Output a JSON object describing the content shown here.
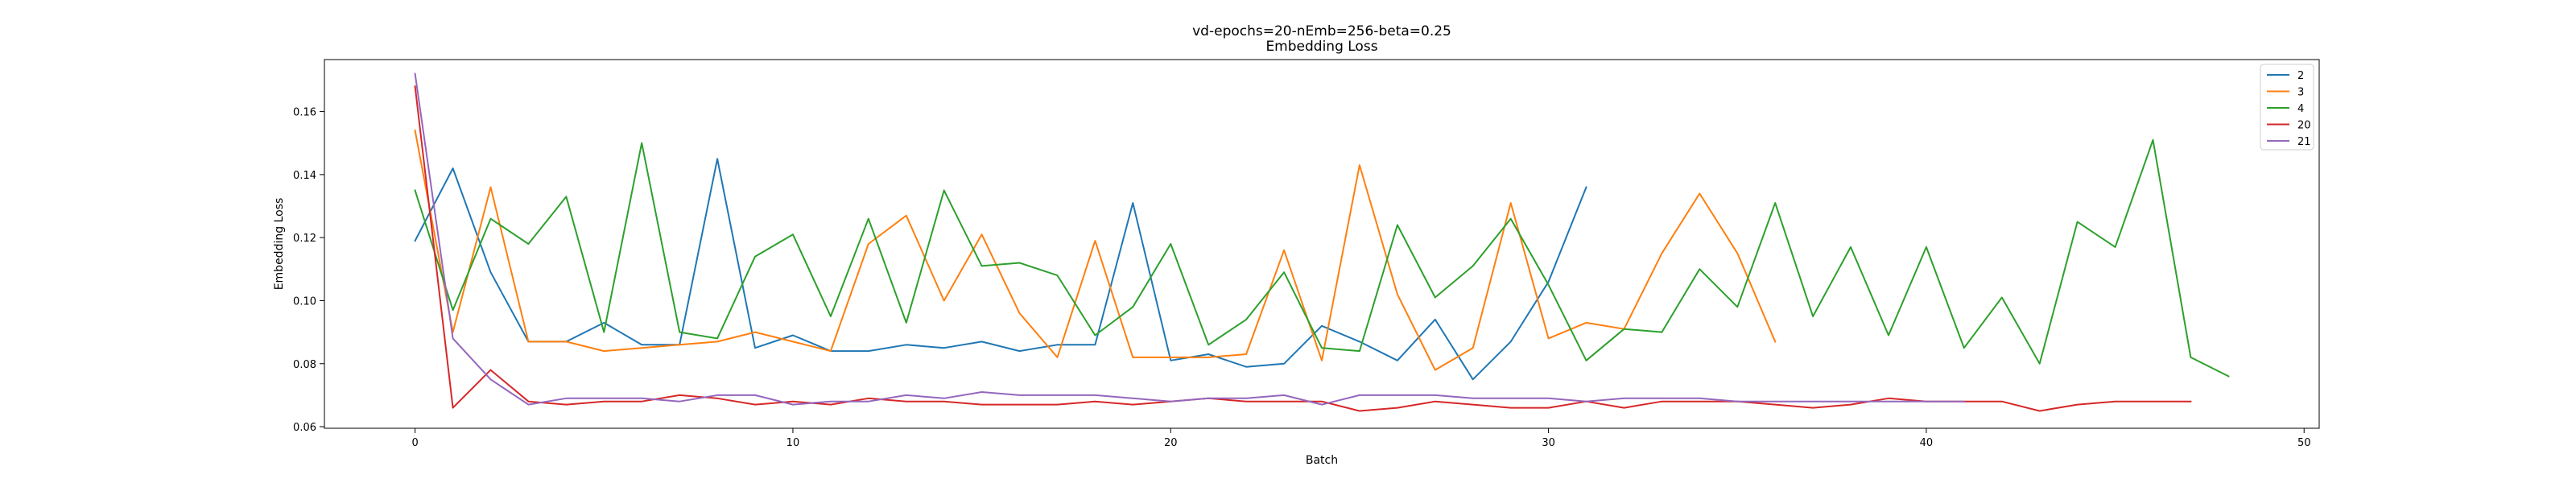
{
  "chart_data": {
    "type": "line",
    "title": "vd-epochs=20-nEmb=256-beta=0.25",
    "subtitle": "Embedding Loss",
    "xlabel": "Batch",
    "ylabel": "Embedding Loss",
    "xlim": [
      -2.4,
      50.4
    ],
    "ylim": [
      0.0595,
      0.1765
    ],
    "xticks": [
      0,
      10,
      20,
      30,
      40,
      50
    ],
    "xtick_labels": [
      "0",
      "10",
      "20",
      "30",
      "40",
      "50"
    ],
    "yticks": [
      0.06,
      0.08,
      0.1,
      0.12,
      0.14,
      0.16
    ],
    "ytick_labels": [
      "0.06",
      "0.08",
      "0.10",
      "0.12",
      "0.14",
      "0.16"
    ],
    "grid": false,
    "legend_position": "top-right",
    "series": [
      {
        "name": "2",
        "color": "#1f77b4",
        "values": [
          0.119,
          0.142,
          0.109,
          0.087,
          0.087,
          0.093,
          0.086,
          0.086,
          0.145,
          0.085,
          0.089,
          0.084,
          0.084,
          0.086,
          0.085,
          0.087,
          0.084,
          0.086,
          0.086,
          0.131,
          0.081,
          0.083,
          0.079,
          0.08,
          0.092,
          0.087,
          0.081,
          0.094,
          0.075,
          0.087,
          0.106,
          0.136
        ]
      },
      {
        "name": "3",
        "color": "#ff7f0e",
        "values": [
          0.154,
          0.09,
          0.136,
          0.087,
          0.087,
          0.084,
          0.085,
          0.086,
          0.087,
          0.09,
          0.087,
          0.084,
          0.118,
          0.127,
          0.1,
          0.121,
          0.096,
          0.082,
          0.119,
          0.082,
          0.082,
          0.082,
          0.083,
          0.116,
          0.081,
          0.143,
          0.102,
          0.078,
          0.085,
          0.131,
          0.088,
          0.093,
          0.091,
          0.115,
          0.134,
          0.115,
          0.087
        ]
      },
      {
        "name": "4",
        "color": "#2ca02c",
        "values": [
          0.135,
          0.097,
          0.126,
          0.118,
          0.133,
          0.09,
          0.15,
          0.09,
          0.088,
          0.114,
          0.121,
          0.095,
          0.126,
          0.093,
          0.135,
          0.111,
          0.112,
          0.108,
          0.089,
          0.098,
          0.118,
          0.086,
          0.094,
          0.109,
          0.085,
          0.084,
          0.124,
          0.101,
          0.111,
          0.126,
          0.105,
          0.081,
          0.091,
          0.09,
          0.11,
          0.098,
          0.131,
          0.095,
          0.117,
          0.089,
          0.117,
          0.085,
          0.101,
          0.08,
          0.125,
          0.117,
          0.151,
          0.082,
          0.076
        ]
      },
      {
        "name": "20",
        "color": "#d62728",
        "values": [
          0.168,
          0.066,
          0.078,
          0.068,
          0.067,
          0.068,
          0.068,
          0.07,
          0.069,
          0.067,
          0.068,
          0.067,
          0.069,
          0.068,
          0.068,
          0.067,
          0.067,
          0.067,
          0.068,
          0.067,
          0.068,
          0.069,
          0.068,
          0.068,
          0.068,
          0.065,
          0.066,
          0.068,
          0.067,
          0.066,
          0.066,
          0.068,
          0.066,
          0.068,
          0.068,
          0.068,
          0.067,
          0.066,
          0.067,
          0.069,
          0.068,
          0.068,
          0.068,
          0.065,
          0.067,
          0.068,
          0.068,
          0.068
        ]
      },
      {
        "name": "21",
        "color": "#9467bd",
        "values": [
          0.172,
          0.088,
          0.075,
          0.067,
          0.069,
          0.069,
          0.069,
          0.068,
          0.07,
          0.07,
          0.067,
          0.068,
          0.068,
          0.07,
          0.069,
          0.071,
          0.07,
          0.07,
          0.07,
          0.069,
          0.068,
          0.069,
          0.069,
          0.07,
          0.067,
          0.07,
          0.07,
          0.07,
          0.069,
          0.069,
          0.069,
          0.068,
          0.069,
          0.069,
          0.069,
          0.068,
          0.068,
          0.068,
          0.068,
          0.068,
          0.068,
          0.068
        ]
      }
    ]
  }
}
